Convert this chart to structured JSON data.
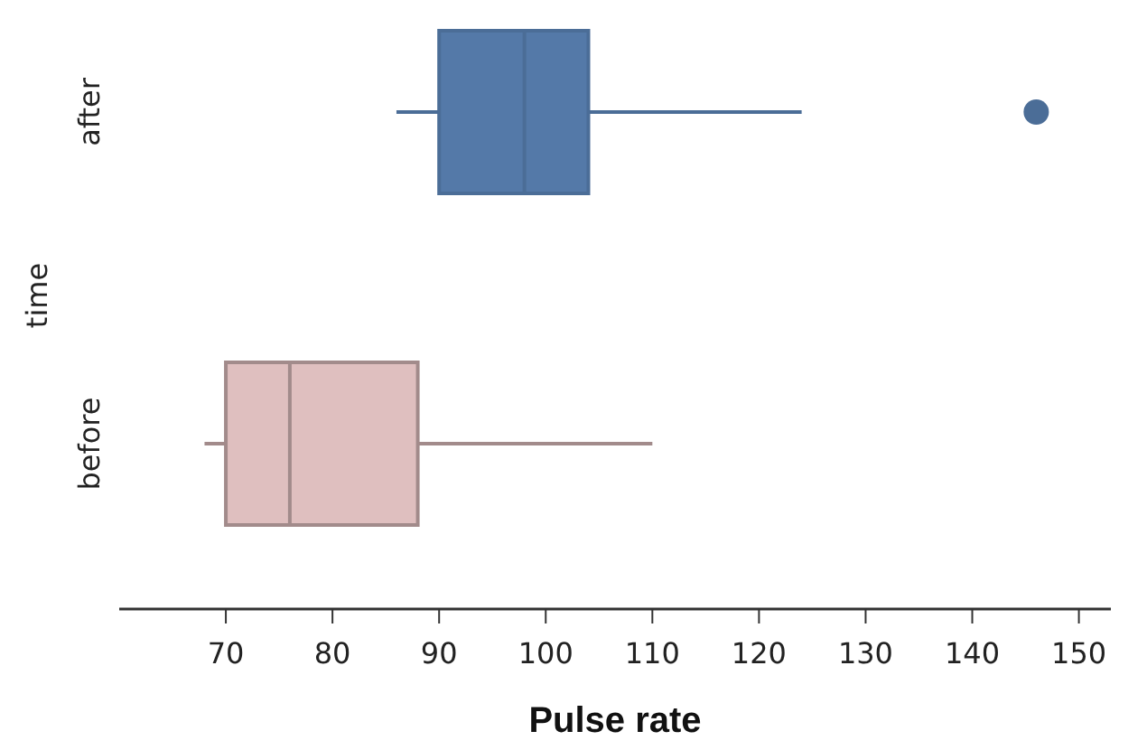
{
  "chart_data": {
    "type": "box",
    "orientation": "horizontal",
    "categories": [
      "after",
      "before"
    ],
    "boxes": [
      {
        "low": 86,
        "q1": 90,
        "median": 98,
        "q3": 104,
        "high": 124,
        "outliers": [
          146
        ]
      },
      {
        "low": 68,
        "q1": 70,
        "median": 76,
        "q3": 88,
        "high": 110
      }
    ],
    "colors": [
      "#5479a8",
      "#dfbfbf"
    ],
    "xlabel": "Pulse rate",
    "ylabel": "time",
    "xlim": [
      60,
      153
    ],
    "xticks": [
      70,
      80,
      90,
      100,
      110,
      120,
      130,
      140,
      150
    ],
    "grid": false
  }
}
